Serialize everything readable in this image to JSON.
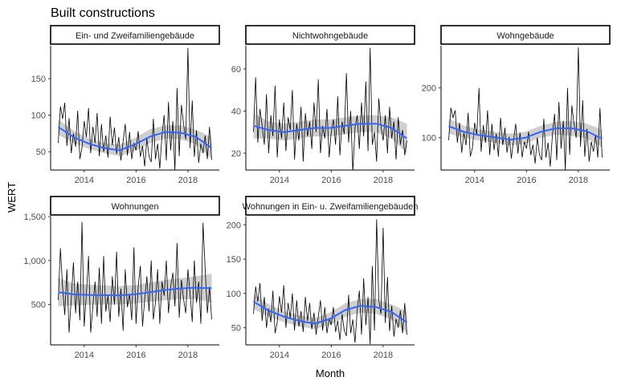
{
  "chart_data": {
    "type": "line",
    "title": "Built constructions",
    "xlabel": "Month",
    "ylabel": "WERT",
    "x_range": [
      "2013-01",
      "2018-12"
    ],
    "x_ticks": [
      "2014",
      "2016",
      "2018"
    ],
    "months": [
      "2013-01",
      "2013-02",
      "2013-03",
      "2013-04",
      "2013-05",
      "2013-06",
      "2013-07",
      "2013-08",
      "2013-09",
      "2013-10",
      "2013-11",
      "2013-12",
      "2014-01",
      "2014-02",
      "2014-03",
      "2014-04",
      "2014-05",
      "2014-06",
      "2014-07",
      "2014-08",
      "2014-09",
      "2014-10",
      "2014-11",
      "2014-12",
      "2015-01",
      "2015-02",
      "2015-03",
      "2015-04",
      "2015-05",
      "2015-06",
      "2015-07",
      "2015-08",
      "2015-09",
      "2015-10",
      "2015-11",
      "2015-12",
      "2016-01",
      "2016-02",
      "2016-03",
      "2016-04",
      "2016-05",
      "2016-06",
      "2016-07",
      "2016-08",
      "2016-09",
      "2016-10",
      "2016-11",
      "2016-12",
      "2017-01",
      "2017-02",
      "2017-03",
      "2017-04",
      "2017-05",
      "2017-06",
      "2017-07",
      "2017-08",
      "2017-09",
      "2017-10",
      "2017-11",
      "2017-12",
      "2018-01",
      "2018-02",
      "2018-03",
      "2018-04",
      "2018-05",
      "2018-06",
      "2018-07",
      "2018-08",
      "2018-09",
      "2018-10",
      "2018-11",
      "2018-12"
    ],
    "smooth_color": "#3366FF",
    "band_color": "#bfbfbf",
    "grid": false,
    "panels": [
      {
        "name": "Ein- und Zweifamiliengebäude",
        "ylim": [
          25,
          195
        ],
        "y_ticks": [
          50,
          100,
          150
        ],
        "y_tick_labels": [
          "50",
          "100",
          "150"
        ],
        "values": [
          62,
          112,
          95,
          117,
          58,
          96,
          48,
          75,
          57,
          106,
          40,
          56,
          92,
          70,
          110,
          48,
          84,
          62,
          103,
          44,
          88,
          50,
          72,
          42,
          98,
          59,
          83,
          47,
          70,
          38,
          64,
          88,
          45,
          77,
          40,
          62,
          52,
          78,
          43,
          58,
          30,
          68,
          44,
          36,
          95,
          40,
          61,
          27,
          72,
          100,
          38,
          118,
          52,
          92,
          24,
          137,
          44,
          114,
          88,
          67,
          192,
          55,
          120,
          43,
          79,
          35,
          61,
          48,
          72,
          40,
          84,
          39
        ],
        "smooth": [
          84,
          70,
          61,
          55,
          52,
          60,
          71,
          77,
          76,
          70,
          55
        ],
        "band": [
          [
            73,
            94
          ],
          [
            62,
            79
          ],
          [
            54,
            68
          ],
          [
            48,
            62
          ],
          [
            44,
            60
          ],
          [
            51,
            69
          ],
          [
            62,
            81
          ],
          [
            68,
            86
          ],
          [
            67,
            86
          ],
          [
            60,
            80
          ],
          [
            40,
            70
          ]
        ]
      },
      {
        "name": "Nichtwohngebäude",
        "ylim": [
          12,
          71
        ],
        "y_ticks": [
          20,
          40,
          60
        ],
        "y_tick_labels": [
          "20",
          "40",
          "60"
        ],
        "values": [
          30,
          56,
          25,
          41,
          33,
          24,
          48,
          20,
          38,
          28,
          52,
          18,
          36,
          27,
          44,
          21,
          37,
          31,
          50,
          17,
          34,
          26,
          42,
          16,
          39,
          28,
          35,
          22,
          44,
          30,
          55,
          20,
          33,
          27,
          41,
          18,
          30,
          36,
          24,
          47,
          19,
          35,
          29,
          58,
          25,
          40,
          11,
          32,
          38,
          22,
          44,
          28,
          54,
          21,
          70,
          24,
          30,
          16,
          46,
          33,
          26,
          38,
          20,
          42,
          27,
          35,
          17,
          37,
          24,
          31,
          19,
          26
        ],
        "smooth": [
          33,
          31,
          30,
          31,
          32,
          32,
          33,
          34,
          34,
          32,
          27
        ],
        "band": [
          [
            27,
            39
          ],
          [
            27,
            35
          ],
          [
            26,
            34
          ],
          [
            27,
            35
          ],
          [
            28,
            36
          ],
          [
            28,
            36
          ],
          [
            29,
            37
          ],
          [
            30,
            38
          ],
          [
            30,
            38
          ],
          [
            27,
            37
          ],
          [
            20,
            34
          ]
        ]
      },
      {
        "name": "Wohngebäude",
        "ylim": [
          35,
          285
        ],
        "y_ticks": [
          100,
          200
        ],
        "y_tick_labels": [
          "100",
          "200"
        ],
        "values": [
          95,
          160,
          140,
          155,
          90,
          130,
          70,
          110,
          85,
          150,
          62,
          80,
          130,
          105,
          200,
          72,
          125,
          90,
          155,
          65,
          128,
          75,
          108,
          62,
          140,
          85,
          120,
          70,
          102,
          58,
          95,
          128,
          68,
          110,
          60,
          92,
          78,
          112,
          65,
          86,
          48,
          100,
          66,
          55,
          138,
          60,
          90,
          42,
          105,
          148,
          55,
          172,
          78,
          134,
          35,
          200,
          66,
          165,
          128,
          100,
          282,
          82,
          175,
          62,
          118,
          52,
          92,
          72,
          106,
          60,
          160,
          60
        ],
        "smooth": [
          123,
          112,
          105,
          101,
          96,
          100,
          112,
          119,
          119,
          113,
          98
        ],
        "band": [
          [
            108,
            138
          ],
          [
            100,
            124
          ],
          [
            94,
            116
          ],
          [
            90,
            112
          ],
          [
            84,
            108
          ],
          [
            88,
            112
          ],
          [
            100,
            124
          ],
          [
            106,
            132
          ],
          [
            104,
            134
          ],
          [
            98,
            128
          ],
          [
            80,
            116
          ]
        ]
      },
      {
        "name": "Wohnungen",
        "ylim": [
          40,
          1500
        ],
        "y_ticks": [
          500,
          1000,
          1500
        ],
        "y_tick_labels": [
          "500",
          "1,000",
          "1,500"
        ],
        "values": [
          550,
          1140,
          700,
          380,
          900,
          180,
          560,
          980,
          400,
          760,
          320,
          1440,
          250,
          620,
          1050,
          180,
          480,
          760,
          360,
          920,
          280,
          1050,
          420,
          600,
          300,
          820,
          500,
          1100,
          360,
          680,
          200,
          900,
          470,
          620,
          320,
          1150,
          280,
          700,
          940,
          250,
          560,
          820,
          420,
          1000,
          330,
          520,
          900,
          280,
          760,
          600,
          1000,
          400,
          700,
          860,
          480,
          1200,
          350,
          780,
          560,
          400,
          900,
          620,
          300,
          1000,
          520,
          760,
          280,
          1430,
          900,
          400,
          700,
          330
        ],
        "smooth": [
          640,
          615,
          608,
          606,
          604,
          616,
          640,
          665,
          683,
          690,
          685
        ],
        "band": [
          [
            480,
            800
          ],
          [
            490,
            740
          ],
          [
            495,
            725
          ],
          [
            500,
            715
          ],
          [
            500,
            710
          ],
          [
            510,
            720
          ],
          [
            530,
            750
          ],
          [
            550,
            780
          ],
          [
            560,
            800
          ],
          [
            560,
            820
          ],
          [
            520,
            850
          ]
        ]
      },
      {
        "name": "Wohnungen in Ein- u. Zweifamiliengebäuden",
        "ylim": [
          25,
          212
        ],
        "y_ticks": [
          50,
          100,
          150,
          200
        ],
        "y_tick_labels": [
          "50",
          "100",
          "150",
          "200"
        ],
        "values": [
          70,
          110,
          88,
          115,
          60,
          95,
          50,
          78,
          58,
          104,
          42,
          58,
          96,
          72,
          112,
          50,
          86,
          64,
          100,
          46,
          90,
          52,
          74,
          44,
          95,
          60,
          86,
          48,
          72,
          40,
          66,
          90,
          46,
          80,
          42,
          64,
          54,
          80,
          44,
          60,
          32,
          70,
          46,
          38,
          98,
          42,
          62,
          28,
          75,
          104,
          40,
          122,
          54,
          95,
          26,
          140,
          46,
          208,
          90,
          70,
          196,
          57,
          124,
          45,
          82,
          37,
          63,
          50,
          75,
          42,
          86,
          40
        ],
        "smooth": [
          88,
          75,
          66,
          60,
          56,
          63,
          76,
          82,
          80,
          73,
          58
        ],
        "band": [
          [
            77,
            99
          ],
          [
            66,
            84
          ],
          [
            58,
            74
          ],
          [
            52,
            68
          ],
          [
            48,
            64
          ],
          [
            54,
            72
          ],
          [
            66,
            86
          ],
          [
            72,
            92
          ],
          [
            70,
            92
          ],
          [
            62,
            84
          ],
          [
            42,
            74
          ]
        ]
      }
    ]
  }
}
